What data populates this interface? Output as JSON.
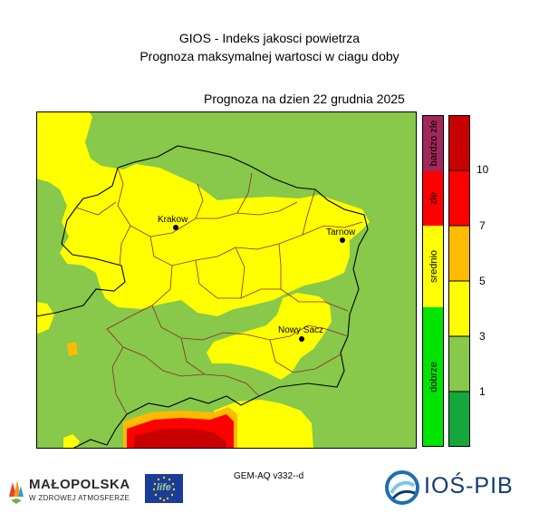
{
  "header": {
    "title_line1": "GIOS - Indeks jakosci powietrza",
    "title_line2": "Prognoza maksymalnej wartosci w ciagu doby",
    "forecast_date": "Prognoza na dzien  22 grudnia 2025"
  },
  "map": {
    "cities": [
      {
        "name": "Krakow"
      },
      {
        "name": "Tarnow"
      },
      {
        "name": "Nowy Sacz"
      }
    ],
    "background_category": "dobrze"
  },
  "legend": {
    "categories": [
      {
        "label": "dobrze",
        "color": "#00e400"
      },
      {
        "label": "srednio",
        "color": "#ffff00"
      },
      {
        "label": "zle",
        "color": "#ff0000"
      },
      {
        "label": "bardzo zle",
        "color": "#a0285a"
      }
    ],
    "scale": {
      "colors": [
        "#14a83c",
        "#88c84a",
        "#ffff00",
        "#ffbb00",
        "#ff0000",
        "#c80000"
      ],
      "ticks": [
        "1",
        "3",
        "5",
        "7",
        "10"
      ]
    }
  },
  "footer": {
    "model": "GEM-AQ v332--d",
    "malopolska_name": "MAŁOPOLSKA",
    "malopolska_tagline": "W ZDROWEJ ATMOSFERZE",
    "eu_life": "life",
    "ios_name": "IOŚ-PIB"
  }
}
